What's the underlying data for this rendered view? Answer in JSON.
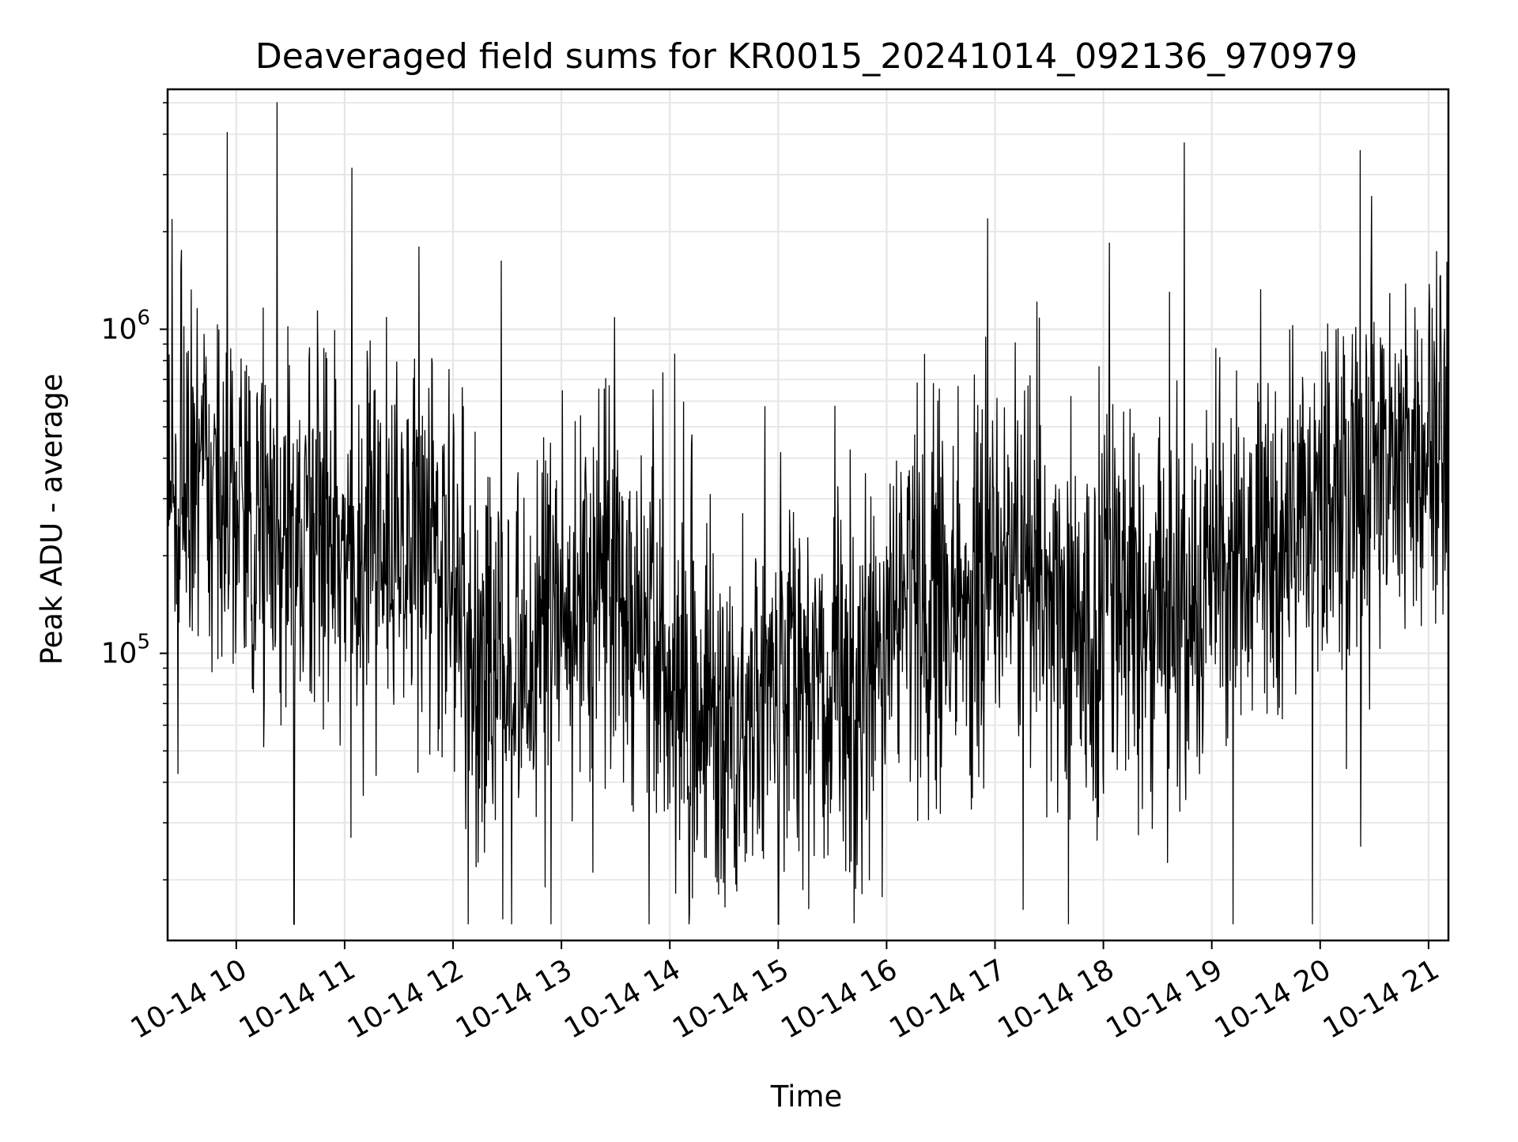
{
  "chart_data": {
    "type": "line",
    "title": "Deaveraged field sums for KR0015_20241014_092136_970979",
    "xlabel": "Time",
    "ylabel": "Peak ADU - average",
    "yscale": "log",
    "xlim": [
      "2024-10-14 09:22",
      "2024-10-14 21:11"
    ],
    "ylim": [
      13000,
      5500000
    ],
    "grid": true,
    "line_color": "#000000",
    "grid_color": "#e6e6e6",
    "x_ticks": [
      "10-14 10",
      "10-14 11",
      "10-14 12",
      "10-14 13",
      "10-14 14",
      "10-14 15",
      "10-14 16",
      "10-14 17",
      "10-14 18",
      "10-14 19",
      "10-14 20",
      "10-14 21"
    ],
    "y_ticks": [
      {
        "base": "10",
        "exp": "5",
        "value": 100000
      },
      {
        "base": "10",
        "exp": "6",
        "value": 1000000
      }
    ],
    "series": [
      {
        "x": [
          "2024-10-14 09:22",
          "2024-10-14 09:30",
          "2024-10-14 09:40",
          "2024-10-14 09:50",
          "2024-10-14 10:00",
          "2024-10-14 10:15",
          "2024-10-14 10:30",
          "2024-10-14 10:45",
          "2024-10-14 11:00",
          "2024-10-14 11:15",
          "2024-10-14 11:30",
          "2024-10-14 11:45",
          "2024-10-14 12:00",
          "2024-10-14 12:15",
          "2024-10-14 12:30",
          "2024-10-14 12:45",
          "2024-10-14 13:00",
          "2024-10-14 13:15",
          "2024-10-14 13:30",
          "2024-10-14 13:45",
          "2024-10-14 14:00",
          "2024-10-14 14:15",
          "2024-10-14 14:30",
          "2024-10-14 14:45",
          "2024-10-14 15:00",
          "2024-10-14 15:15",
          "2024-10-14 15:30",
          "2024-10-14 15:45",
          "2024-10-14 16:00",
          "2024-10-14 16:15",
          "2024-10-14 16:30",
          "2024-10-14 16:45",
          "2024-10-14 17:00",
          "2024-10-14 17:15",
          "2024-10-14 17:30",
          "2024-10-14 17:45",
          "2024-10-14 18:00",
          "2024-10-14 18:15",
          "2024-10-14 18:30",
          "2024-10-14 18:45",
          "2024-10-14 19:00",
          "2024-10-14 19:15",
          "2024-10-14 19:30",
          "2024-10-14 19:45",
          "2024-10-14 20:00",
          "2024-10-14 20:15",
          "2024-10-14 20:30",
          "2024-10-14 20:45",
          "2024-10-14 21:00",
          "2024-10-14 21:11"
        ],
        "y": [
          300000,
          350000,
          330000,
          320000,
          260000,
          240000,
          230000,
          220000,
          200000,
          210000,
          230000,
          270000,
          160000,
          90000,
          80000,
          95000,
          150000,
          170000,
          150000,
          130000,
          80000,
          60000,
          55000,
          70000,
          90000,
          85000,
          70000,
          80000,
          130000,
          140000,
          130000,
          150000,
          170000,
          180000,
          130000,
          120000,
          130000,
          135000,
          140000,
          145000,
          170000,
          200000,
          220000,
          250000,
          300000,
          330000,
          350000,
          360000,
          380000,
          420000
        ]
      }
    ]
  }
}
